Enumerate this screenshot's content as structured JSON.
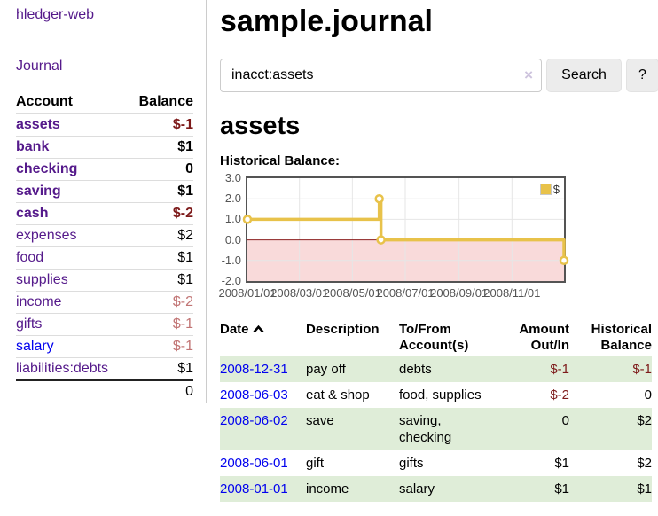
{
  "sidebar": {
    "title": "hledger-web",
    "nav": {
      "journal": "Journal"
    },
    "table": {
      "headers": {
        "account": "Account",
        "balance": "Balance"
      },
      "rows": [
        {
          "name": "assets",
          "balance": "$-1"
        },
        {
          "name": "bank",
          "balance": "$1"
        },
        {
          "name": "checking",
          "balance": "0"
        },
        {
          "name": "saving",
          "balance": "$1"
        },
        {
          "name": "cash",
          "balance": "$-2"
        },
        {
          "name": "expenses",
          "balance": "$2"
        },
        {
          "name": "food",
          "balance": "$1"
        },
        {
          "name": "supplies",
          "balance": "$1"
        },
        {
          "name": "income",
          "balance": "$-2"
        },
        {
          "name": "gifts",
          "balance": "$-1"
        },
        {
          "name": "salary",
          "balance": "$-1"
        },
        {
          "name": "liabilities:debts",
          "balance": "$1"
        }
      ],
      "total": "0"
    }
  },
  "main": {
    "title": "sample.journal",
    "search": {
      "value": "inacct:assets",
      "clear": "×",
      "submit": "Search",
      "help": "?"
    },
    "account_heading": "assets",
    "chart_heading": "Historical Balance:"
  },
  "chart_data": {
    "type": "line",
    "style": "steps",
    "title": "Historical Balance:",
    "series": [
      {
        "name": "$",
        "color": "#e8c24a",
        "points": [
          [
            "2008-01-01",
            1
          ],
          [
            "2008-06-01",
            2
          ],
          [
            "2008-06-03",
            0
          ],
          [
            "2008-12-31",
            -1
          ]
        ]
      }
    ],
    "xlim": [
      "2008-01-01",
      "2008-12-31"
    ],
    "ylim": [
      -2,
      3
    ],
    "x_ticks": [
      "2008/01/01",
      "2008/03/01",
      "2008/05/01",
      "2008/07/01",
      "2008/09/01",
      "2008/11/01"
    ],
    "y_ticks": [
      "3.0",
      "2.0",
      "1.0",
      "0.0",
      "-1.0",
      "-2.0"
    ],
    "y_tick_values": [
      3,
      2,
      1,
      0,
      -1,
      -2
    ],
    "legend": {
      "label": "$",
      "position": "top-right"
    },
    "grid": true,
    "grid_color": "#e6e6e6",
    "negative_region_color": "#f9dada",
    "zero_line_color": "#8b1f1f"
  },
  "register": {
    "headers": [
      "Date",
      "Description",
      "To/From Account(s)",
      "Amount Out/In",
      "Historical Balance"
    ],
    "rows": [
      {
        "date": "2008-12-31",
        "description": "pay off",
        "accounts": "debts",
        "amount": "$-1",
        "balance": "$-1"
      },
      {
        "date": "2008-06-03",
        "description": "eat & shop",
        "accounts": "food, supplies",
        "amount": "$-2",
        "balance": "0"
      },
      {
        "date": "2008-06-02",
        "description": "save",
        "accounts": "saving, checking",
        "amount": "0",
        "balance": "$2"
      },
      {
        "date": "2008-06-01",
        "description": "gift",
        "accounts": "gifts",
        "amount": "$1",
        "balance": "$2"
      },
      {
        "date": "2008-01-01",
        "description": "income",
        "accounts": "salary",
        "amount": "$1",
        "balance": "$1"
      }
    ]
  },
  "colors": {
    "link_visited": "#551A8B",
    "link": "#0202ee",
    "negative_strong": "#7d1a1a",
    "negative_dim": "#c17474",
    "row_highlight": "#dfedd8",
    "series": "#e8c24a"
  }
}
